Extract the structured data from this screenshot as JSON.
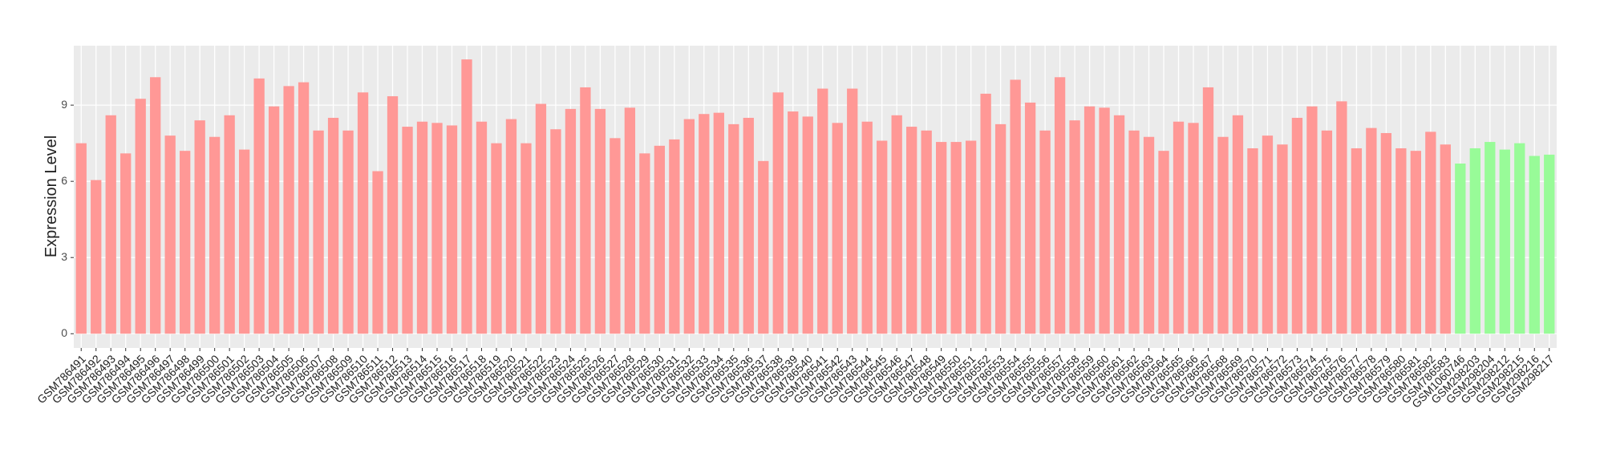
{
  "chart_data": {
    "type": "bar",
    "y_label": "Expression Level",
    "categories": [
      "GSM786491",
      "GSM786492",
      "GSM786493",
      "GSM786494",
      "GSM786495",
      "GSM786496",
      "GSM786497",
      "GSM786498",
      "GSM786499",
      "GSM786500",
      "GSM786501",
      "GSM786502",
      "GSM786503",
      "GSM786504",
      "GSM786505",
      "GSM786506",
      "GSM786507",
      "GSM786508",
      "GSM786509",
      "GSM786510",
      "GSM786511",
      "GSM786512",
      "GSM786513",
      "GSM786514",
      "GSM786515",
      "GSM786516",
      "GSM786517",
      "GSM786518",
      "GSM786519",
      "GSM786520",
      "GSM786521",
      "GSM786522",
      "GSM786523",
      "GSM786524",
      "GSM786525",
      "GSM786526",
      "GSM786527",
      "GSM786528",
      "GSM786529",
      "GSM786530",
      "GSM786531",
      "GSM786532",
      "GSM786533",
      "GSM786534",
      "GSM786535",
      "GSM786536",
      "GSM786537",
      "GSM786538",
      "GSM786539",
      "GSM786540",
      "GSM786541",
      "GSM786542",
      "GSM786543",
      "GSM786544",
      "GSM786545",
      "GSM786546",
      "GSM786547",
      "GSM786548",
      "GSM786549",
      "GSM786550",
      "GSM786551",
      "GSM786552",
      "GSM786553",
      "GSM786554",
      "GSM786555",
      "GSM786556",
      "GSM786557",
      "GSM786558",
      "GSM786559",
      "GSM786560",
      "GSM786561",
      "GSM786562",
      "GSM786563",
      "GSM786564",
      "GSM786565",
      "GSM786566",
      "GSM786567",
      "GSM786568",
      "GSM786569",
      "GSM786570",
      "GSM786571",
      "GSM786572",
      "GSM786573",
      "GSM786574",
      "GSM786575",
      "GSM786576",
      "GSM786577",
      "GSM786578",
      "GSM786579",
      "GSM786580",
      "GSM786581",
      "GSM786582",
      "GSM786583",
      "GSM1060746",
      "GSM298203",
      "GSM298204",
      "GSM298212",
      "GSM298215",
      "GSM298216",
      "GSM298217"
    ],
    "values": [
      7.5,
      6.05,
      8.6,
      7.1,
      9.25,
      10.1,
      7.8,
      7.2,
      8.4,
      7.75,
      8.6,
      7.25,
      10.05,
      8.95,
      9.75,
      9.9,
      8.0,
      8.5,
      8.0,
      9.5,
      6.4,
      9.35,
      8.15,
      8.35,
      8.3,
      8.2,
      10.8,
      8.35,
      7.5,
      8.45,
      7.5,
      9.05,
      8.05,
      8.85,
      9.7,
      8.85,
      7.7,
      8.9,
      7.1,
      7.4,
      7.65,
      8.45,
      8.65,
      8.7,
      8.25,
      8.5,
      6.8,
      9.5,
      8.75,
      8.55,
      9.65,
      8.3,
      9.65,
      8.35,
      7.6,
      8.6,
      8.15,
      8.0,
      7.55,
      7.55,
      7.6,
      9.45,
      8.25,
      10.0,
      9.1,
      8.0,
      10.1,
      8.4,
      8.95,
      8.9,
      8.6,
      8.0,
      7.75,
      7.2,
      8.35,
      8.3,
      9.7,
      7.75,
      8.6,
      7.3,
      7.8,
      7.45,
      8.5,
      8.95,
      8.0,
      9.15,
      7.3,
      8.1,
      7.9,
      7.3,
      7.2,
      7.95,
      7.45,
      6.7,
      7.3,
      7.55,
      7.25,
      7.5,
      7.0,
      7.05
    ],
    "colors": [
      "#ff9896",
      "#ff9896",
      "#ff9896",
      "#ff9896",
      "#ff9896",
      "#ff9896",
      "#ff9896",
      "#ff9896",
      "#ff9896",
      "#ff9896",
      "#ff9896",
      "#ff9896",
      "#ff9896",
      "#ff9896",
      "#ff9896",
      "#ff9896",
      "#ff9896",
      "#ff9896",
      "#ff9896",
      "#ff9896",
      "#ff9896",
      "#ff9896",
      "#ff9896",
      "#ff9896",
      "#ff9896",
      "#ff9896",
      "#ff9896",
      "#ff9896",
      "#ff9896",
      "#ff9896",
      "#ff9896",
      "#ff9896",
      "#ff9896",
      "#ff9896",
      "#ff9896",
      "#ff9896",
      "#ff9896",
      "#ff9896",
      "#ff9896",
      "#ff9896",
      "#ff9896",
      "#ff9896",
      "#ff9896",
      "#ff9896",
      "#ff9896",
      "#ff9896",
      "#ff9896",
      "#ff9896",
      "#ff9896",
      "#ff9896",
      "#ff9896",
      "#ff9896",
      "#ff9896",
      "#ff9896",
      "#ff9896",
      "#ff9896",
      "#ff9896",
      "#ff9896",
      "#ff9896",
      "#ff9896",
      "#ff9896",
      "#ff9896",
      "#ff9896",
      "#ff9896",
      "#ff9896",
      "#ff9896",
      "#ff9896",
      "#ff9896",
      "#ff9896",
      "#ff9896",
      "#ff9896",
      "#ff9896",
      "#ff9896",
      "#ff9896",
      "#ff9896",
      "#ff9896",
      "#ff9896",
      "#ff9896",
      "#ff9896",
      "#ff9896",
      "#ff9896",
      "#ff9896",
      "#ff9896",
      "#ff9896",
      "#ff9896",
      "#ff9896",
      "#ff9896",
      "#ff9896",
      "#ff9896",
      "#ff9896",
      "#ff9896",
      "#ff9896",
      "#ff9896",
      "#98fb98",
      "#98fb98",
      "#98fb98",
      "#98fb98",
      "#98fb98",
      "#98fb98",
      "#98fb98"
    ],
    "ylim": [
      -0.56,
      11.34
    ],
    "yticks": [
      0,
      3,
      6,
      9
    ],
    "grid": true
  }
}
